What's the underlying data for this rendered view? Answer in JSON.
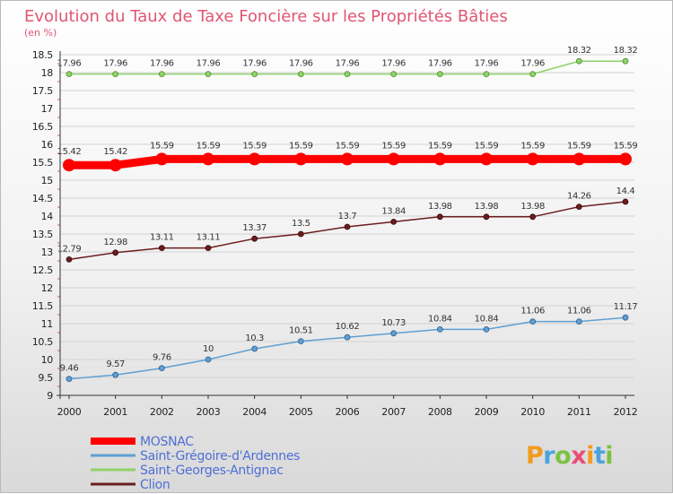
{
  "chart_data": {
    "type": "line",
    "title": "Evolution du Taux de Taxe Foncière sur les Propriétés Bâties",
    "subtitle": "(en %)",
    "x": [
      "2000",
      "2001",
      "2002",
      "2003",
      "2004",
      "2005",
      "2006",
      "2007",
      "2008",
      "2009",
      "2010",
      "2011",
      "2012"
    ],
    "y_ticks": [
      "9",
      "9.5",
      "10",
      "10.5",
      "11",
      "11.5",
      "12",
      "12.5",
      "13",
      "13.5",
      "14",
      "14.5",
      "15",
      "15.5",
      "16",
      "16.5",
      "17",
      "17.5",
      "18",
      "18.5"
    ],
    "ylim": [
      9,
      18.5
    ],
    "series": [
      {
        "name": "MOSNAC",
        "color": "#ff0000",
        "values": [
          15.42,
          15.42,
          15.59,
          15.59,
          15.59,
          15.59,
          15.59,
          15.59,
          15.59,
          15.59,
          15.59,
          15.59,
          15.59
        ],
        "labels": [
          "15.42",
          "15.42",
          "15.59",
          "15.59",
          "15.59",
          "15.59",
          "15.59",
          "15.59",
          "15.59",
          "15.59",
          "15.59",
          "15.59",
          "15.59"
        ]
      },
      {
        "name": "Saint-Grégoire-d'Ardennes",
        "color": "#5f9fd2",
        "values": [
          9.46,
          9.57,
          9.76,
          10,
          10.3,
          10.51,
          10.62,
          10.73,
          10.84,
          10.84,
          11.06,
          11.06,
          11.17
        ],
        "labels": [
          "9.46",
          "9.57",
          "9.76",
          "10",
          "10.3",
          "10.51",
          "10.62",
          "10.73",
          "10.84",
          "10.84",
          "11.06",
          "11.06",
          "11.17"
        ]
      },
      {
        "name": "Saint-Georges-Antignac",
        "color": "#8fd16a",
        "values": [
          17.96,
          17.96,
          17.96,
          17.96,
          17.96,
          17.96,
          17.96,
          17.96,
          17.96,
          17.96,
          17.96,
          18.32,
          18.32
        ],
        "labels": [
          "17.96",
          "17.96",
          "17.96",
          "17.96",
          "17.96",
          "17.96",
          "17.96",
          "17.96",
          "17.96",
          "17.96",
          "17.96",
          "18.32",
          "18.32"
        ]
      },
      {
        "name": "Clion",
        "color": "#6b1d1d",
        "values": [
          12.79,
          12.98,
          13.11,
          13.11,
          13.37,
          13.5,
          13.7,
          13.84,
          13.98,
          13.98,
          13.98,
          14.26,
          14.4
        ],
        "labels": [
          "12.79",
          "12.98",
          "13.11",
          "13.11",
          "13.37",
          "13.5",
          "13.7",
          "13.84",
          "13.98",
          "13.98",
          "13.98",
          "14.26",
          "14.4"
        ]
      }
    ],
    "legend_position": "bottom-left"
  },
  "logo": {
    "text": "Proxiti"
  }
}
